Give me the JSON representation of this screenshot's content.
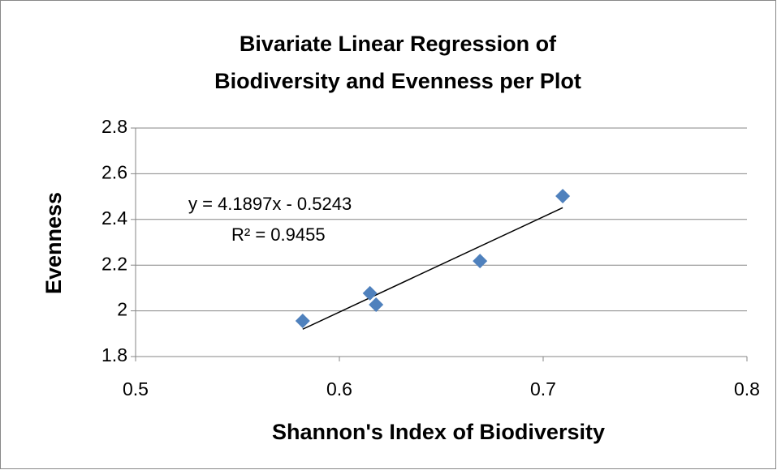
{
  "chart_data": {
    "type": "scatter",
    "title": [
      "Bivariate Linear Regression of",
      "Biodiversity and Evenness per Plot"
    ],
    "x_label": "Shannon's Index of Biodiversity",
    "y_label": "Evenness",
    "series": [
      {
        "name": "Evenness",
        "color": "#4f81bd",
        "x": [
          0.582,
          0.615,
          0.618,
          0.669,
          0.7096
        ],
        "values": [
          1.956,
          2.077,
          2.027,
          2.218,
          2.502
        ]
      }
    ],
    "trendline": {
      "equation": "y = 4.1897x - 0.5243",
      "r_squared": "R² = 0.9455",
      "color": "#000000"
    },
    "xlim": [
      0.5,
      0.8
    ],
    "xticks": [
      0.5,
      0.6,
      0.7,
      0.8
    ],
    "ylim": [
      1.8,
      2.8
    ],
    "yticks": [
      1.8,
      2,
      2.2,
      2.4,
      2.6,
      2.8
    ],
    "grid": true
  }
}
